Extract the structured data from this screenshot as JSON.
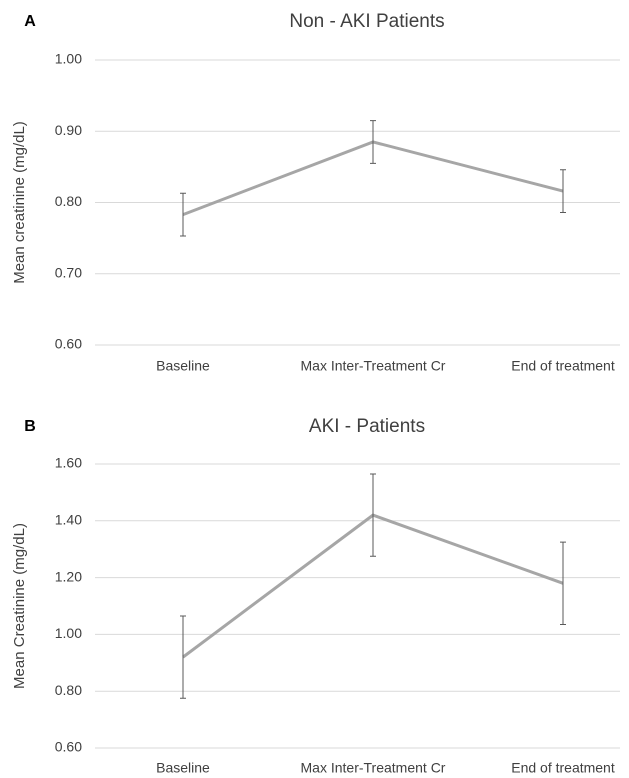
{
  "chart_data": [
    {
      "type": "line",
      "panel_label": "A",
      "title": "Non - AKI Patients",
      "y_label": "Mean creatinine (mg/dL)",
      "categories": [
        "Baseline",
        "Max Inter-Treatment Cr",
        "End of treatment"
      ],
      "values": [
        0.783,
        0.885,
        0.816
      ],
      "errors": [
        0.03,
        0.03,
        0.03
      ],
      "color": "#a6a6a6",
      "ylim": [
        0.6,
        1.0
      ],
      "yticks": [
        {
          "value": 0.6,
          "label": "0.60"
        },
        {
          "value": 0.7,
          "label": "0.70"
        },
        {
          "value": 0.8,
          "label": "0.80"
        },
        {
          "value": 0.9,
          "label": "0.90"
        },
        {
          "value": 1.0,
          "label": "1.00"
        }
      ],
      "grid": true
    },
    {
      "type": "line",
      "panel_label": "B",
      "title": "AKI - Patients",
      "y_label": "Mean Creatinine (mg/dL)",
      "categories": [
        "Baseline",
        "Max Inter-Treatment Cr",
        "End of treatment"
      ],
      "values": [
        0.92,
        1.42,
        1.18
      ],
      "errors": [
        0.145,
        0.145,
        0.145
      ],
      "color": "#a6a6a6",
      "ylim": [
        0.6,
        1.6
      ],
      "yticks": [
        {
          "value": 0.6,
          "label": "0.60"
        },
        {
          "value": 0.8,
          "label": "0.80"
        },
        {
          "value": 1.0,
          "label": "1.00"
        },
        {
          "value": 1.2,
          "label": "1.20"
        },
        {
          "value": 1.4,
          "label": "1.40"
        },
        {
          "value": 1.6,
          "label": "1.60"
        }
      ],
      "grid": true
    }
  ]
}
